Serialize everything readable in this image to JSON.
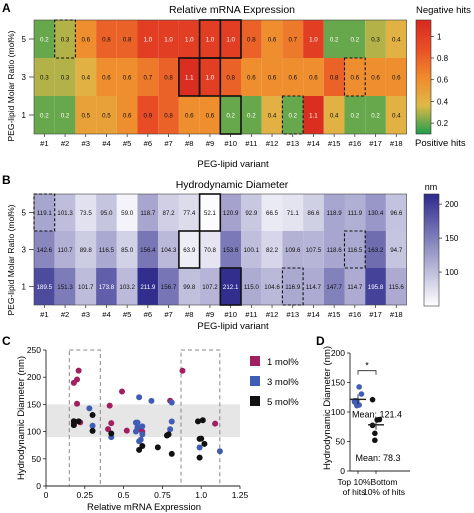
{
  "panels": {
    "a": "A",
    "b": "B",
    "c": "C",
    "d": "D"
  },
  "chart_data": [
    {
      "type": "heatmap",
      "panel": "A",
      "title": "Relative mRNA Expression",
      "xlabel": "PEG-lipid variant",
      "ylabel": "PEG-lipid Molar Ratio (mol%)",
      "categories": [
        "#1",
        "#2",
        "#3",
        "#4",
        "#5",
        "#6",
        "#7",
        "#8",
        "#9",
        "#10",
        "#11",
        "#12",
        "#13",
        "#14",
        "#15",
        "#16",
        "#17",
        "#18"
      ],
      "rows": [
        "5",
        "3",
        "1"
      ],
      "values": [
        [
          "0.2",
          "0.3",
          "0.6",
          "0.8",
          "0.8",
          "1.0",
          "1.0",
          "1.0",
          "1.0",
          "1.0",
          "0.8",
          "0.6",
          "0.7",
          "1.0",
          "0.2",
          "0.2",
          "0.3",
          "0.4"
        ],
        [
          "0.3",
          "0.3",
          "0.4",
          "0.6",
          "0.6",
          "0.7",
          "0.8",
          "1.1",
          "1.0",
          "0.8",
          "0.6",
          "0.6",
          "0.6",
          "0.6",
          "0.8",
          "0.6",
          "0.6",
          "0.6"
        ],
        [
          "0.2",
          "0.2",
          "0.5",
          "0.5",
          "0.6",
          "0.9",
          "0.8",
          "0.6",
          "0.6",
          "0.2",
          "0.2",
          "0.4",
          "0.2",
          "1.1",
          "0.4",
          "0.2",
          "0.2",
          "0.4"
        ]
      ],
      "colorbar": {
        "ticks": [
          "0.2",
          "0.4",
          "0.6",
          "0.8",
          "1"
        ],
        "top_label": "Negative hits",
        "bottom_label": "Positive hits",
        "range": [
          0.1,
          1.15
        ],
        "colors": [
          "#1e9e4e",
          "#e0b848",
          "#ef8a2c",
          "#e94e26",
          "#d7281f"
        ]
      },
      "solid_boxes": [
        [
          0,
          8
        ],
        [
          0,
          9
        ],
        [
          1,
          7
        ],
        [
          1,
          8
        ],
        [
          2,
          9
        ]
      ],
      "dashed_boxes": [
        [
          0,
          1
        ],
        [
          1,
          15
        ],
        [
          2,
          12
        ]
      ],
      "grid": false
    },
    {
      "type": "heatmap",
      "panel": "B",
      "title": "Hydrodynamic Diameter",
      "xlabel": "PEG-lipid variant",
      "ylabel": "PEG-lipid Molar Ratio (mol%)",
      "categories": [
        "#1",
        "#2",
        "#3",
        "#4",
        "#5",
        "#6",
        "#7",
        "#8",
        "#9",
        "#10",
        "#11",
        "#12",
        "#13",
        "#14",
        "#15",
        "#16",
        "#17",
        "#18"
      ],
      "rows": [
        "5",
        "3",
        "1"
      ],
      "values": [
        [
          "119.1",
          "101.3",
          "73.5",
          "95.0",
          "59.0",
          "118.7",
          "87.2",
          "77.4",
          "52.1",
          "120.9",
          "92.9",
          "66.5",
          "71.1",
          "86.6",
          "118.9",
          "111.9",
          "130.4",
          "96.6"
        ],
        [
          "142.6",
          "110.7",
          "89.8",
          "116.5",
          "85.0",
          "156.4",
          "104.3",
          "63.9",
          "70.8",
          "153.6",
          "100.1",
          "82.2",
          "109.6",
          "107.5",
          "118.6",
          "116.5",
          "163.2",
          "94.7"
        ],
        [
          "189.5",
          "151.3",
          "101.7",
          "173.8",
          "103.2",
          "211.9",
          "156.7",
          "99.8",
          "107.2",
          "212.1",
          "115.0",
          "104.6",
          "116.9",
          "114.7",
          "147.7",
          "114.7",
          "195.8",
          "115.6"
        ]
      ],
      "colorbar": {
        "label": "nm",
        "ticks": [
          "100",
          "150",
          "200"
        ],
        "range": [
          50,
          215
        ],
        "colors": [
          "#ffffff",
          "#2d2a8c"
        ]
      },
      "solid_boxes": [
        [
          0,
          8
        ],
        [
          1,
          7
        ],
        [
          2,
          9
        ]
      ],
      "dashed_boxes": [
        [
          0,
          0
        ],
        [
          1,
          15
        ],
        [
          2,
          12
        ]
      ],
      "grid": false
    },
    {
      "type": "scatter",
      "panel": "C",
      "xlabel": "Relative mRNA Expression",
      "ylabel": "Hydrodynamic Diameter (nm)",
      "xlim": [
        0,
        1.25
      ],
      "ylim": [
        0,
        250
      ],
      "x_ticks": [
        "0",
        "0.25",
        "0.5",
        "0.75",
        "1.0",
        "1.25"
      ],
      "y_ticks": [
        "0",
        "50",
        "100",
        "150",
        "200",
        "250"
      ],
      "band": [
        90,
        150
      ],
      "dashed_regions": [
        [
          0.15,
          0.35
        ],
        [
          0.87,
          1.12
        ]
      ],
      "series": [
        {
          "name": "1 mol%",
          "color": "#a02060",
          "points": [
            [
              0.2,
              189.5
            ],
            [
              0.2,
              151.3
            ],
            [
              0.5,
              101.7
            ],
            [
              0.5,
              173.8
            ],
            [
              0.6,
              103.2
            ],
            [
              0.9,
              211.9
            ],
            [
              0.8,
              156.7
            ],
            [
              0.6,
              99.8
            ],
            [
              0.6,
              107.2
            ],
            [
              0.2,
              212.1
            ],
            [
              0.2,
              115.0
            ],
            [
              0.4,
              104.6
            ],
            [
              0.2,
              116.9
            ],
            [
              1.1,
              114.7
            ],
            [
              0.4,
              147.7
            ],
            [
              0.2,
              114.7
            ],
            [
              0.2,
              195.8
            ],
            [
              0.4,
              115.6
            ]
          ]
        },
        {
          "name": "3 mol%",
          "color": "#3f5db5",
          "points": [
            [
              0.3,
              142.6
            ],
            [
              0.3,
              110.7
            ],
            [
              0.4,
              89.8
            ],
            [
              0.6,
              116.5
            ],
            [
              0.6,
              85.0
            ],
            [
              0.7,
              156.4
            ],
            [
              0.8,
              104.3
            ],
            [
              1.1,
              63.9
            ],
            [
              1.0,
              70.8
            ],
            [
              0.8,
              153.6
            ],
            [
              0.6,
              100.1
            ],
            [
              0.6,
              82.2
            ],
            [
              0.6,
              109.6
            ],
            [
              0.6,
              107.5
            ],
            [
              0.8,
              118.6
            ],
            [
              0.6,
              116.5
            ],
            [
              0.6,
              163.2
            ],
            [
              0.6,
              94.7
            ]
          ]
        },
        {
          "name": "5 mol%",
          "color": "#111111",
          "points": [
            [
              0.2,
              119.1
            ],
            [
              0.3,
              101.3
            ],
            [
              0.6,
              73.5
            ],
            [
              0.8,
              95.0
            ],
            [
              0.8,
              59.0
            ],
            [
              1.0,
              118.7
            ],
            [
              1.0,
              87.2
            ],
            [
              1.0,
              77.4
            ],
            [
              1.0,
              52.1
            ],
            [
              1.0,
              120.9
            ],
            [
              0.8,
              92.9
            ],
            [
              0.6,
              66.5
            ],
            [
              0.7,
              71.1
            ],
            [
              1.0,
              86.6
            ],
            [
              0.2,
              118.9
            ],
            [
              0.2,
              111.9
            ],
            [
              0.3,
              130.4
            ],
            [
              0.4,
              96.6
            ]
          ]
        }
      ],
      "legend": "right"
    },
    {
      "type": "scatter",
      "panel": "D",
      "ylabel": "Hydrodynamic Diameter (nm)",
      "ylim": [
        0,
        200
      ],
      "y_ticks": [
        "0",
        "50",
        "100",
        "150",
        "200"
      ],
      "categories": [
        "Top 10% of hits",
        "Bottom 10% of hits"
      ],
      "groups": [
        {
          "label_lines": [
            "Top 10%",
            "of hits"
          ],
          "mean_text": "Mean: 121.4",
          "mean": 121.4,
          "points": [
            [
              0.2,
              119.1
            ],
            [
              0.2,
              118.9
            ],
            [
              0.2,
              111.9
            ],
            [
              0.2,
              130.4
            ],
            [
              0.2,
              116.9
            ],
            [
              0.3,
              110.7
            ],
            [
              0.3,
              142.6
            ]
          ]
        },
        {
          "label_lines": [
            "Bottom",
            "10% of hits"
          ],
          "mean_text": "Mean: 78.3",
          "mean": 78.3,
          "points": [
            [
              1.0,
              120.9
            ],
            [
              1.0,
              52.1
            ],
            [
              1.0,
              86.6
            ],
            [
              1.0,
              87.2
            ],
            [
              1.0,
              77.4
            ],
            [
              1.1,
              63.9
            ]
          ]
        }
      ],
      "significance": "*"
    }
  ]
}
